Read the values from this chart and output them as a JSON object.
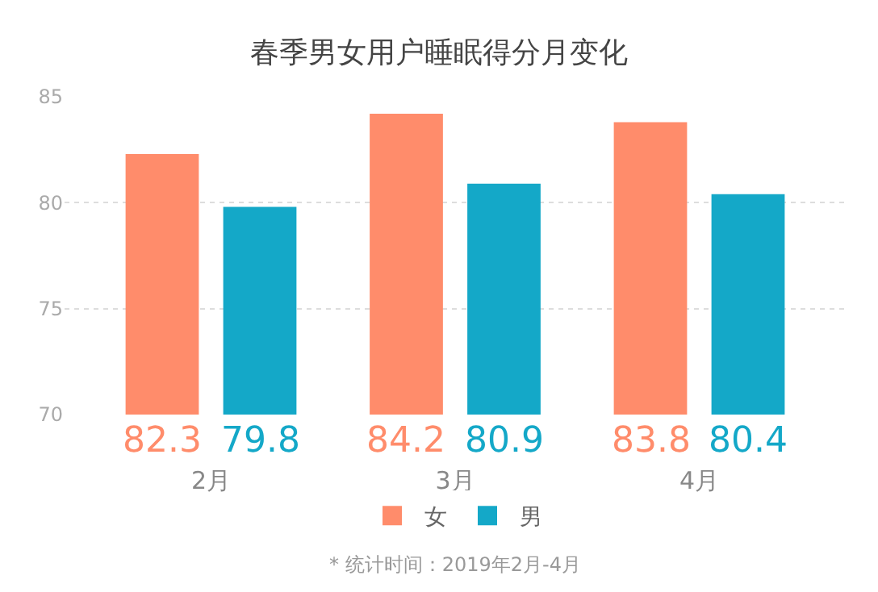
{
  "chart_data": {
    "type": "bar",
    "title": "春季男女用户睡眠得分月变化",
    "categories": [
      "2月",
      "3月",
      "4月"
    ],
    "series": [
      {
        "name": "女",
        "color": "#ff8c6b",
        "values": [
          82.3,
          84.2,
          83.8
        ]
      },
      {
        "name": "男",
        "color": "#14a8c8",
        "values": [
          79.8,
          80.9,
          80.4
        ]
      }
    ],
    "ylim": [
      70,
      85
    ],
    "yticks": [
      70,
      75,
      80,
      85
    ],
    "grid": "y",
    "legend": "bottom",
    "data_labels": true,
    "annotations": [
      "* 统计时间：2019年2月-4月"
    ]
  }
}
